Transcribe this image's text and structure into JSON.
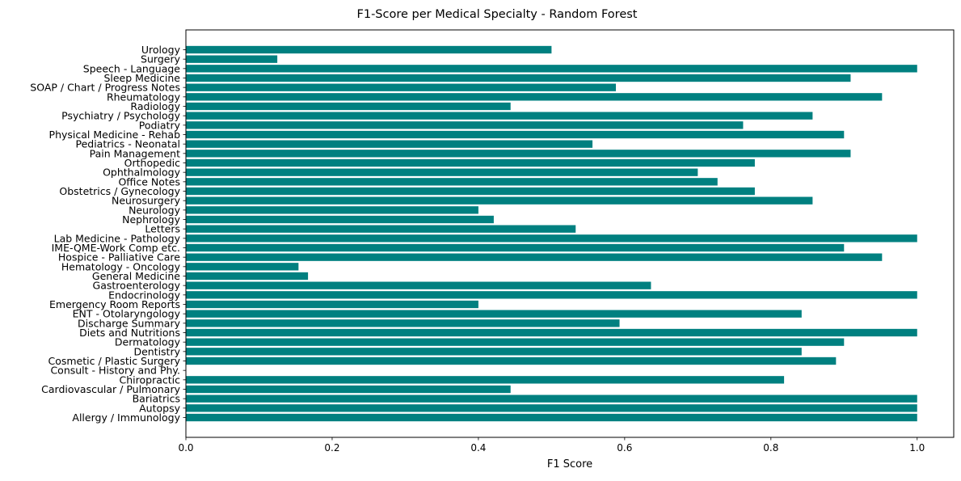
{
  "chart_data": {
    "type": "bar",
    "orientation": "horizontal",
    "title": "F1-Score per Medical Specialty - Random Forest",
    "xlabel": "F1 Score",
    "ylabel": "",
    "xlim": [
      0,
      1.05
    ],
    "xticks": [
      0.0,
      0.2,
      0.4,
      0.6,
      0.8,
      1.0
    ],
    "xtick_labels": [
      "0.0",
      "0.2",
      "0.4",
      "0.6",
      "0.8",
      "1.0"
    ],
    "bar_color": "#008080",
    "grid": false,
    "categories": [
      " Allergy / Immunology",
      " Autopsy",
      " Bariatrics",
      " Cardiovascular / Pulmonary",
      " Chiropractic",
      " Consult - History and Phy.",
      " Cosmetic / Plastic Surgery",
      " Dentistry",
      " Dermatology",
      " Diets and Nutritions",
      " Discharge Summary",
      " ENT - Otolaryngology",
      " Emergency Room Reports",
      " Endocrinology",
      " Gastroenterology",
      " General Medicine",
      " Hematology - Oncology",
      " Hospice - Palliative Care",
      " IME-QME-Work Comp etc.",
      " Lab Medicine - Pathology",
      " Letters",
      " Nephrology",
      " Neurology",
      " Neurosurgery",
      " Obstetrics / Gynecology",
      " Office Notes",
      " Ophthalmology",
      " Orthopedic",
      " Pain Management",
      " Pediatrics - Neonatal",
      " Physical Medicine - Rehab",
      " Podiatry",
      " Psychiatry / Psychology",
      " Radiology",
      " Rheumatology",
      " SOAP / Chart / Progress Notes",
      " Sleep Medicine",
      " Speech - Language",
      " Surgery",
      " Urology"
    ],
    "values": [
      1.0,
      1.0,
      1.0,
      0.444,
      0.818,
      0.0,
      0.889,
      0.842,
      0.9,
      1.0,
      0.593,
      0.842,
      0.4,
      1.0,
      0.636,
      0.167,
      0.154,
      0.952,
      0.9,
      1.0,
      0.533,
      0.421,
      0.4,
      0.857,
      0.778,
      0.727,
      0.7,
      0.778,
      0.909,
      0.556,
      0.9,
      0.762,
      0.857,
      0.444,
      0.952,
      0.588,
      0.909,
      1.0,
      0.125,
      0.5
    ]
  }
}
